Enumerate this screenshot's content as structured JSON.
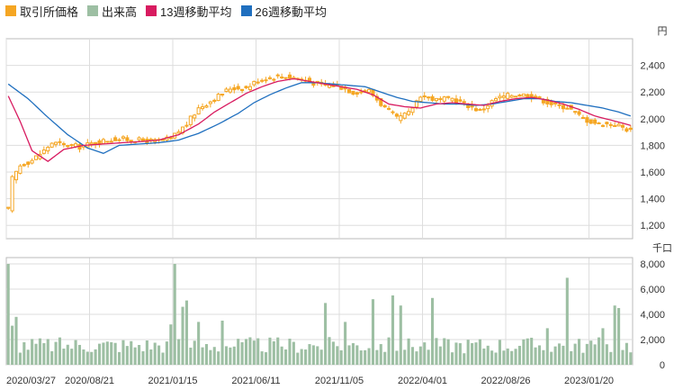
{
  "legend": {
    "price_label": "取引所価格",
    "volume_label": "出来高",
    "ma13_label": "13週移動平均",
    "ma26_label": "26週移動平均"
  },
  "colors": {
    "candle": "#f5a623",
    "volume": "#9dbfa3",
    "ma13": "#d81b60",
    "ma26": "#1f6fbf",
    "grid": "#dddddd",
    "frame": "#bbbbbb"
  },
  "chart_data": [
    {
      "type": "candlestick",
      "unit_label": "円",
      "ylim": [
        1100,
        2600
      ],
      "yticks": [
        "1,200",
        "1,400",
        "1,600",
        "1,800",
        "2,000",
        "2,200",
        "2,400"
      ],
      "ytick_values": [
        1200,
        1400,
        1600,
        1800,
        2000,
        2200,
        2400
      ],
      "xlabels": [
        "2020/03/27",
        "2020/08/21",
        "2021/01/15",
        "2021/06/11",
        "2021/11/05",
        "2022/04/01",
        "2022/08/26",
        "2023/01/20"
      ],
      "n_weeks": 158,
      "grid": true,
      "close_anchors": [
        [
          0,
          1320
        ],
        [
          1,
          1550
        ],
        [
          3,
          1650
        ],
        [
          6,
          1690
        ],
        [
          9,
          1760
        ],
        [
          11,
          1820
        ],
        [
          15,
          1800
        ],
        [
          18,
          1790
        ],
        [
          22,
          1820
        ],
        [
          27,
          1850
        ],
        [
          32,
          1840
        ],
        [
          37,
          1830
        ],
        [
          41,
          1850
        ],
        [
          45,
          1960
        ],
        [
          48,
          2080
        ],
        [
          52,
          2150
        ],
        [
          56,
          2230
        ],
        [
          60,
          2230
        ],
        [
          63,
          2290
        ],
        [
          68,
          2320
        ],
        [
          72,
          2310
        ],
        [
          75,
          2290
        ],
        [
          79,
          2250
        ],
        [
          83,
          2250
        ],
        [
          87,
          2200
        ],
        [
          91,
          2210
        ],
        [
          95,
          2080
        ],
        [
          98,
          2000
        ],
        [
          101,
          2040
        ],
        [
          104,
          2180
        ],
        [
          108,
          2140
        ],
        [
          112,
          2150
        ],
        [
          116,
          2100
        ],
        [
          119,
          2060
        ],
        [
          123,
          2150
        ],
        [
          127,
          2180
        ],
        [
          131,
          2180
        ],
        [
          134,
          2150
        ],
        [
          138,
          2100
        ],
        [
          141,
          2090
        ],
        [
          145,
          2000
        ],
        [
          149,
          1960
        ],
        [
          153,
          1960
        ],
        [
          157,
          1910
        ]
      ],
      "ma13_anchors": [
        [
          0,
          2170
        ],
        [
          3,
          1980
        ],
        [
          6,
          1760
        ],
        [
          10,
          1680
        ],
        [
          14,
          1770
        ],
        [
          19,
          1800
        ],
        [
          24,
          1810
        ],
        [
          29,
          1820
        ],
        [
          34,
          1830
        ],
        [
          38,
          1840
        ],
        [
          43,
          1880
        ],
        [
          48,
          1960
        ],
        [
          52,
          2050
        ],
        [
          56,
          2120
        ],
        [
          60,
          2190
        ],
        [
          64,
          2240
        ],
        [
          68,
          2280
        ],
        [
          72,
          2300
        ],
        [
          76,
          2280
        ],
        [
          80,
          2260
        ],
        [
          84,
          2240
        ],
        [
          88,
          2220
        ],
        [
          92,
          2180
        ],
        [
          96,
          2110
        ],
        [
          100,
          2090
        ],
        [
          104,
          2080
        ],
        [
          108,
          2110
        ],
        [
          112,
          2120
        ],
        [
          116,
          2110
        ],
        [
          120,
          2100
        ],
        [
          124,
          2130
        ],
        [
          128,
          2150
        ],
        [
          132,
          2160
        ],
        [
          136,
          2140
        ],
        [
          140,
          2110
        ],
        [
          144,
          2070
        ],
        [
          148,
          2020
        ],
        [
          152,
          1990
        ],
        [
          157,
          1950
        ]
      ],
      "ma26_anchors": [
        [
          0,
          2260
        ],
        [
          5,
          2150
        ],
        [
          10,
          2010
        ],
        [
          15,
          1880
        ],
        [
          20,
          1780
        ],
        [
          24,
          1740
        ],
        [
          28,
          1800
        ],
        [
          33,
          1810
        ],
        [
          38,
          1820
        ],
        [
          43,
          1840
        ],
        [
          48,
          1890
        ],
        [
          53,
          1960
        ],
        [
          58,
          2040
        ],
        [
          62,
          2120
        ],
        [
          66,
          2180
        ],
        [
          70,
          2230
        ],
        [
          74,
          2270
        ],
        [
          78,
          2270
        ],
        [
          82,
          2260
        ],
        [
          86,
          2250
        ],
        [
          90,
          2240
        ],
        [
          94,
          2200
        ],
        [
          98,
          2160
        ],
        [
          102,
          2130
        ],
        [
          106,
          2120
        ],
        [
          110,
          2110
        ],
        [
          114,
          2110
        ],
        [
          118,
          2100
        ],
        [
          122,
          2110
        ],
        [
          126,
          2130
        ],
        [
          130,
          2150
        ],
        [
          134,
          2150
        ],
        [
          138,
          2130
        ],
        [
          142,
          2120
        ],
        [
          146,
          2100
        ],
        [
          150,
          2080
        ],
        [
          154,
          2050
        ],
        [
          157,
          2020
        ]
      ]
    },
    {
      "type": "bar",
      "unit_label": "千口",
      "ylim": [
        0,
        8500
      ],
      "yticks": [
        "0",
        "2,000",
        "4,000",
        "6,000",
        "8,000"
      ],
      "ytick_values": [
        0,
        2000,
        4000,
        6000,
        8000
      ],
      "n_weeks": 158,
      "grid": true,
      "volume_spikes": [
        [
          0,
          8000
        ],
        [
          1,
          3100
        ],
        [
          2,
          3800
        ],
        [
          42,
          8000
        ],
        [
          41,
          3200
        ],
        [
          44,
          4600
        ],
        [
          45,
          5100
        ],
        [
          48,
          3400
        ],
        [
          54,
          3500
        ],
        [
          80,
          4900
        ],
        [
          85,
          3400
        ],
        [
          92,
          5200
        ],
        [
          97,
          5500
        ],
        [
          99,
          4700
        ],
        [
          107,
          5300
        ],
        [
          141,
          6900
        ],
        [
          153,
          4700
        ],
        [
          154,
          4500
        ],
        [
          136,
          2900
        ],
        [
          150,
          2900
        ]
      ],
      "volume_base": [
        900,
        2200
      ]
    }
  ]
}
